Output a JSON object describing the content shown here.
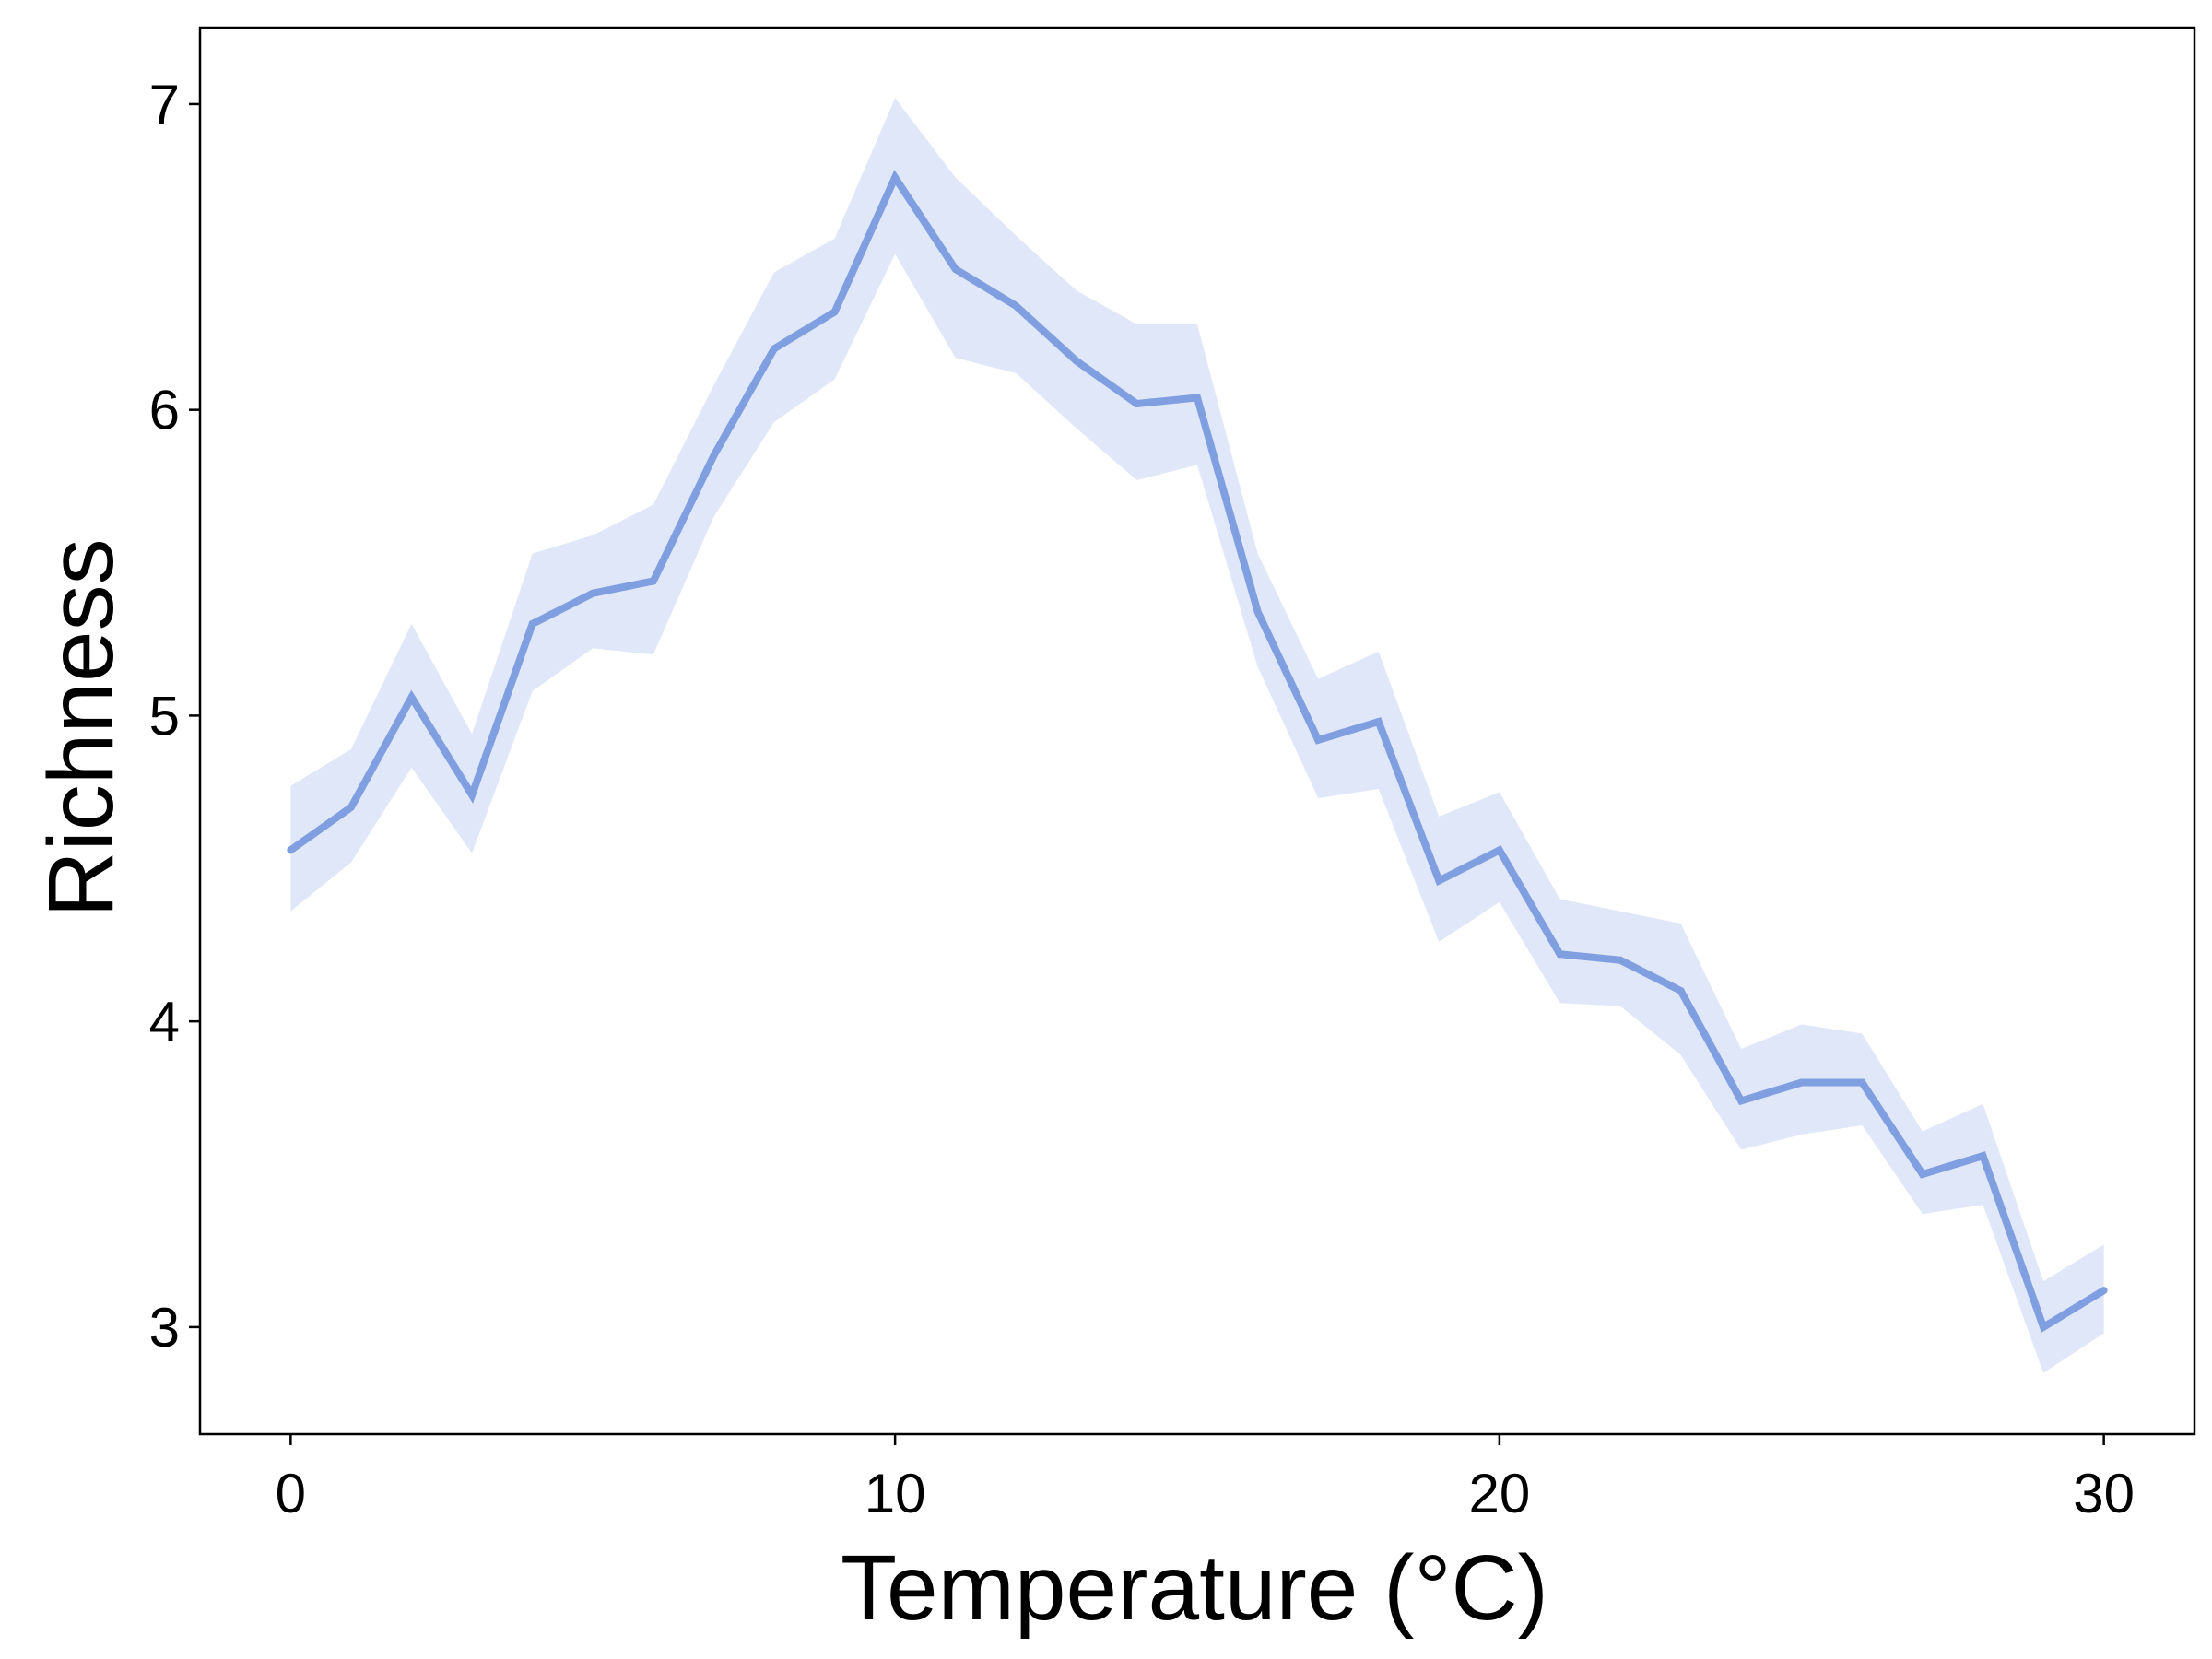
{
  "chart_data": {
    "type": "line",
    "xlabel": "Temperature (°C)",
    "ylabel": "Richness",
    "xlim": [
      -1.5,
      31.5
    ],
    "ylim": [
      2.65,
      7.25
    ],
    "xticks": [
      0,
      10,
      20,
      30
    ],
    "yticks": [
      3,
      4,
      5,
      6,
      7
    ],
    "grid": false,
    "series": [
      {
        "color": "#7f9fe0",
        "band_color": "#e0e7f8",
        "x": [
          0,
          1,
          2,
          3,
          4,
          5,
          6,
          7,
          8,
          9,
          10,
          11,
          12,
          13,
          14,
          15,
          16,
          17,
          18,
          19,
          20,
          21,
          22,
          23,
          24,
          25,
          26,
          27,
          28,
          29,
          30
        ],
        "y": [
          4.56,
          4.7,
          5.06,
          4.74,
          5.3,
          5.4,
          5.44,
          5.85,
          6.2,
          6.32,
          6.76,
          6.46,
          6.34,
          6.16,
          6.02,
          6.04,
          5.34,
          4.92,
          4.98,
          4.46,
          4.56,
          4.22,
          4.2,
          4.1,
          3.74,
          3.8,
          3.8,
          3.5,
          3.56,
          3.0,
          3.12
        ],
        "lower": [
          4.36,
          4.52,
          4.83,
          4.55,
          5.08,
          5.22,
          5.2,
          5.65,
          5.96,
          6.1,
          6.51,
          6.17,
          6.12,
          5.94,
          5.77,
          5.82,
          5.16,
          4.73,
          4.76,
          4.26,
          4.39,
          4.06,
          4.05,
          3.89,
          3.58,
          3.63,
          3.66,
          3.37,
          3.4,
          2.85,
          2.98
        ],
        "upper": [
          4.77,
          4.89,
          5.3,
          4.94,
          5.53,
          5.59,
          5.69,
          6.08,
          6.45,
          6.56,
          7.02,
          6.76,
          6.57,
          6.39,
          6.28,
          6.28,
          5.53,
          5.12,
          5.21,
          4.67,
          4.75,
          4.4,
          4.36,
          4.32,
          3.91,
          3.99,
          3.96,
          3.64,
          3.73,
          3.15,
          3.27
        ]
      }
    ]
  }
}
